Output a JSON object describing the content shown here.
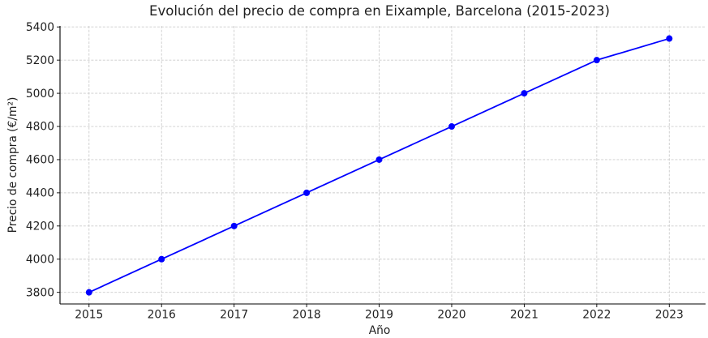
{
  "figure": {
    "background": "#ffffff"
  },
  "chart_data": {
    "type": "line",
    "title": "Evolución del precio de compra en Eixample, Barcelona (2015-2023)",
    "xlabel": "Año",
    "ylabel": "Precio de compra (€/m²)",
    "x": [
      2015,
      2016,
      2017,
      2018,
      2019,
      2020,
      2021,
      2022,
      2023
    ],
    "series": [
      {
        "name": "precio-de-compra",
        "values": [
          3800,
          4000,
          4200,
          4400,
          4600,
          4800,
          5000,
          5200,
          5330
        ],
        "color": "#0000ff",
        "marker": "circle",
        "linewidth": 1.8,
        "markersize": 4
      }
    ],
    "xticks": [
      2015,
      2016,
      2017,
      2018,
      2019,
      2020,
      2021,
      2022,
      2023
    ],
    "yticks": [
      3800,
      4000,
      4200,
      4400,
      4600,
      4800,
      5000,
      5200,
      5400
    ],
    "xlim": [
      2014.6,
      2023.5
    ],
    "ylim": [
      3730,
      5406
    ],
    "grid": true,
    "grid_color": "#cccccc",
    "grid_style": "dashed",
    "legend": false,
    "spines": [
      "left",
      "bottom"
    ],
    "axis_color": "#000000",
    "text_color": "#1f1f1f"
  }
}
